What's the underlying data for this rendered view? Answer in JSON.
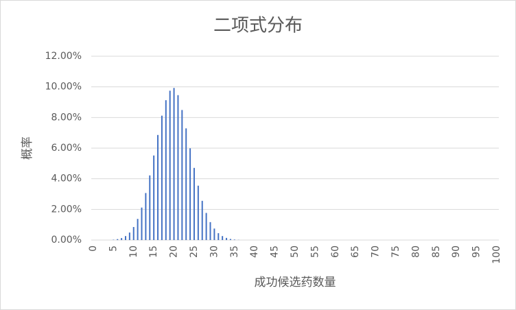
{
  "chart_data": {
    "type": "bar",
    "title": "二项式分布",
    "x_label": "成功候选药数量",
    "y_label": "概率",
    "categories": [
      0,
      null,
      null,
      null,
      null,
      5,
      null,
      null,
      null,
      null,
      10,
      null,
      null,
      null,
      null,
      15,
      null,
      null,
      null,
      null,
      20,
      null,
      null,
      null,
      null,
      25,
      null,
      null,
      null,
      null,
      30,
      null,
      null,
      null,
      null,
      35,
      null,
      null,
      null,
      null,
      40,
      null,
      null,
      null,
      null,
      45,
      null,
      null,
      null,
      null,
      50,
      null,
      null,
      null,
      null,
      55,
      null,
      null,
      null,
      null,
      60,
      null,
      null,
      null,
      null,
      65,
      null,
      null,
      null,
      null,
      70,
      null,
      null,
      null,
      null,
      75,
      null,
      null,
      null,
      null,
      80,
      null,
      null,
      null,
      null,
      85,
      null,
      null,
      null,
      null,
      90,
      null,
      null,
      null,
      null,
      95,
      null,
      null,
      null,
      null,
      100
    ],
    "values": [
      0,
      0,
      0,
      0,
      0,
      0.02,
      0.06,
      0.13,
      0.26,
      0.49,
      0.85,
      1.38,
      2.12,
      3.07,
      4.22,
      5.52,
      6.86,
      8.12,
      9.13,
      9.75,
      9.93,
      9.46,
      8.49,
      7.29,
      5.99,
      4.71,
      3.55,
      2.56,
      1.77,
      1.17,
      0.75,
      0.45,
      0.26,
      0.14,
      0.07,
      0.03,
      0.01,
      0,
      0,
      0,
      0,
      0,
      0,
      0,
      0,
      0,
      0,
      0,
      0,
      0,
      0,
      0,
      0,
      0,
      0,
      0,
      0,
      0,
      0,
      0,
      0,
      0,
      0,
      0,
      0,
      0,
      0,
      0,
      0,
      0,
      0,
      0,
      0,
      0,
      0,
      0,
      0,
      0,
      0,
      0,
      0,
      0,
      0,
      0,
      0,
      0,
      0,
      0,
      0,
      0,
      0,
      0,
      0,
      0,
      0,
      0,
      0,
      0,
      0,
      0,
      0
    ],
    "color": "#4472c4",
    "ylim": [
      0,
      12
    ],
    "yticks": [
      {
        "value": 0,
        "label": "0.00%"
      },
      {
        "value": 2,
        "label": "2.00%"
      },
      {
        "value": 4,
        "label": "4.00%"
      },
      {
        "value": 6,
        "label": "6.00%"
      },
      {
        "value": 8,
        "label": "8.00%"
      },
      {
        "value": 10,
        "label": "10.00%"
      },
      {
        "value": 12,
        "label": "12.00%"
      }
    ],
    "grid": true
  }
}
